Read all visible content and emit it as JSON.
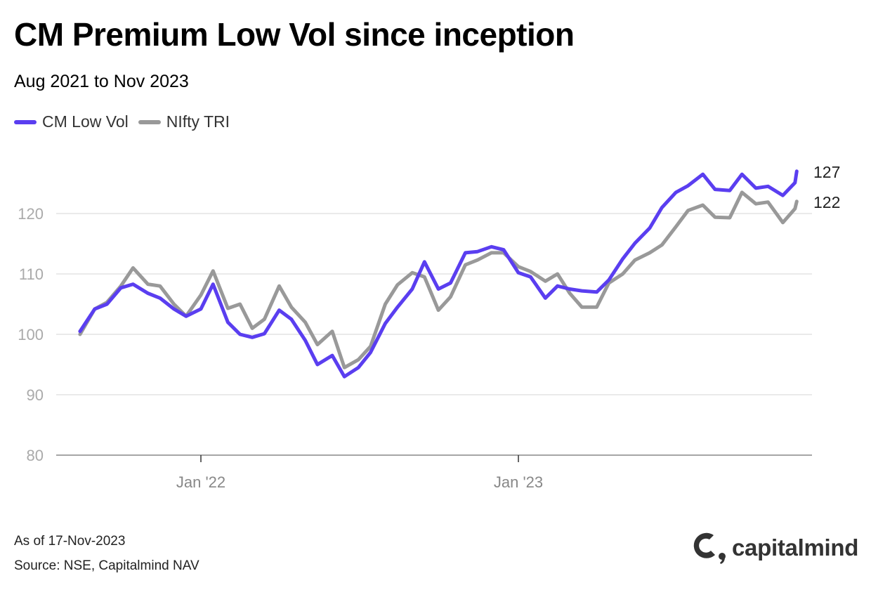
{
  "title": "CM Premium Low Vol since inception",
  "subtitle": "Aug 2021 to Nov 2023",
  "footer": {
    "as_of": "As of 17-Nov-2023",
    "source": "Source: NSE, Capitalmind NAV"
  },
  "logo": {
    "text": "capitalmind"
  },
  "colors": {
    "cm_low_vol": "#5a3ef0",
    "nifty_tri": "#999999",
    "grid": "#dddddd"
  },
  "chart_data": {
    "type": "line",
    "title": "CM Premium Low Vol since inception",
    "subtitle": "Aug 2021 to Nov 2023",
    "xlabel": "",
    "ylabel": "",
    "ylim": [
      80,
      130
    ],
    "yticks": [
      "80",
      "90",
      "100",
      "110",
      "120"
    ],
    "xticks": [
      {
        "date": "2022-01-01",
        "label": "Jan '22"
      },
      {
        "date": "2023-01-01",
        "label": "Jan '23"
      }
    ],
    "grid": "horizontal",
    "legend": "top-left",
    "x": [
      "2021-08-15",
      "2021-09-01",
      "2021-09-15",
      "2021-10-01",
      "2021-10-15",
      "2021-11-01",
      "2021-11-15",
      "2021-12-01",
      "2021-12-15",
      "2022-01-01",
      "2022-01-15",
      "2022-02-01",
      "2022-02-15",
      "2022-03-01",
      "2022-03-15",
      "2022-04-01",
      "2022-04-15",
      "2022-05-01",
      "2022-05-15",
      "2022-06-01",
      "2022-06-15",
      "2022-07-01",
      "2022-07-15",
      "2022-08-01",
      "2022-08-15",
      "2022-09-01",
      "2022-09-15",
      "2022-10-01",
      "2022-10-15",
      "2022-11-01",
      "2022-11-15",
      "2022-12-01",
      "2022-12-15",
      "2023-01-01",
      "2023-01-15",
      "2023-02-01",
      "2023-02-15",
      "2023-03-01",
      "2023-03-15",
      "2023-04-01",
      "2023-04-15",
      "2023-05-01",
      "2023-05-15",
      "2023-06-01",
      "2023-06-15",
      "2023-07-01",
      "2023-07-15",
      "2023-08-01",
      "2023-08-15",
      "2023-09-01",
      "2023-09-15",
      "2023-10-01",
      "2023-10-15",
      "2023-11-01",
      "2023-11-15",
      "2023-11-17"
    ],
    "series": [
      {
        "name": "CM Low Vol",
        "end_label": "127",
        "values": [
          100.5,
          104.2,
          105,
          107.7,
          108.3,
          106.8,
          106,
          104.2,
          103,
          104.2,
          108.3,
          102,
          100,
          99.5,
          100.1,
          104,
          102.5,
          99,
          95,
          96.5,
          93,
          94.5,
          97,
          101.8,
          104.5,
          107.5,
          112,
          107.5,
          108.5,
          113.5,
          113.7,
          114.5,
          114,
          110.2,
          109.5,
          106,
          108,
          107.5,
          107.2,
          107,
          109,
          112.5,
          115.1,
          117.6,
          121,
          123.5,
          124.6,
          126.5,
          124,
          123.8,
          126.5,
          124.2,
          124.5,
          123,
          125.1,
          127
        ]
      },
      {
        "name": "NIfty TRI",
        "end_label": "122",
        "values": [
          100,
          104.2,
          105.3,
          108,
          111,
          108.3,
          108,
          105,
          103,
          106.5,
          110.5,
          104.3,
          105,
          101,
          102.5,
          108,
          104.5,
          102,
          98.3,
          100.5,
          94.5,
          95.8,
          98,
          105,
          108.2,
          110.2,
          109.5,
          104,
          106.2,
          111.5,
          112.3,
          113.5,
          113.5,
          111.2,
          110.4,
          108.8,
          110,
          106.8,
          104.5,
          104.5,
          108.5,
          110,
          112.3,
          113.5,
          114.8,
          117.8,
          120.5,
          121.4,
          119.4,
          119.3,
          123.5,
          121.6,
          121.9,
          118.5,
          120.8,
          122
        ]
      }
    ]
  }
}
